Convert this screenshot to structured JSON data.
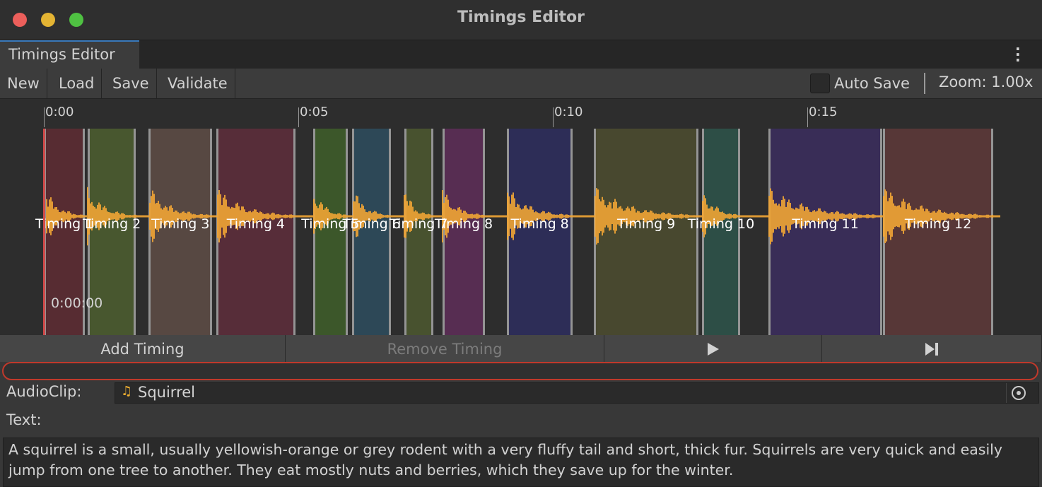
{
  "window": {
    "title": "Timings Editor"
  },
  "tab": "Timings Editor",
  "toolbar": {
    "buttons": [
      "New",
      "Load",
      "Save",
      "Validate"
    ],
    "auto_save": "Auto Save",
    "zoom": "Zoom: 1.00x"
  },
  "timeline": {
    "ruler": [
      {
        "value": 0,
        "label": "0:00"
      },
      {
        "value": 5,
        "label": "0:05"
      },
      {
        "value": 10,
        "label": "0:10"
      },
      {
        "value": 15,
        "label": "0:15"
      }
    ],
    "cursor_time": "0:00:00",
    "segments": [
      {
        "label": "Timing 1",
        "start": 0,
        "end": 0.81,
        "color": "#5a2c33"
      },
      {
        "label": "Timing 2",
        "start": 0.86,
        "end": 1.81,
        "color": "#4a5a30"
      },
      {
        "label": "Timing 3",
        "start": 2.06,
        "end": 3.31,
        "color": "#5a4a44"
      },
      {
        "label": "Timing 4",
        "start": 3.39,
        "end": 4.94,
        "color": "#5a2d3a"
      },
      {
        "label": "Timing 5",
        "start": 5.29,
        "end": 5.97,
        "color": "#3d5a2a"
      },
      {
        "label": "Timing 6",
        "start": 6.06,
        "end": 6.82,
        "color": "#2e4a5a"
      },
      {
        "label": "Timing 7",
        "start": 7.08,
        "end": 7.65,
        "color": "#4a5530"
      },
      {
        "label": "Timing 8",
        "start": 7.83,
        "end": 8.67,
        "color": "#5a2d55"
      },
      {
        "label": "Timing 8",
        "start": 9.1,
        "end": 10.39,
        "color": "#2e2e5a"
      },
      {
        "label": "Timing 9",
        "start": 10.81,
        "end": 12.86,
        "color": "#4a4a30"
      },
      {
        "label": "Timing 10",
        "start": 12.93,
        "end": 13.68,
        "color": "#2e5048"
      },
      {
        "label": "Timing 11",
        "start": 14.24,
        "end": 16.47,
        "color": "#3a2e5a"
      },
      {
        "label": "Timing 12",
        "start": 16.49,
        "end": 18.65,
        "color": "#5a3838"
      }
    ]
  },
  "actions": [
    "Add Timing",
    "Remove Timing"
  ],
  "audio_clip": {
    "label": "AudioClip:",
    "value": "Squirrel"
  },
  "text": {
    "label": "Text:",
    "value": "A squirrel is a small, usually yellowish-orange or grey rodent with a very fluffy tail and short, thick fur. Squirrels are very quick and easily jump from one tree to another. They eat mostly nuts and berries, which they save up for the winter."
  }
}
